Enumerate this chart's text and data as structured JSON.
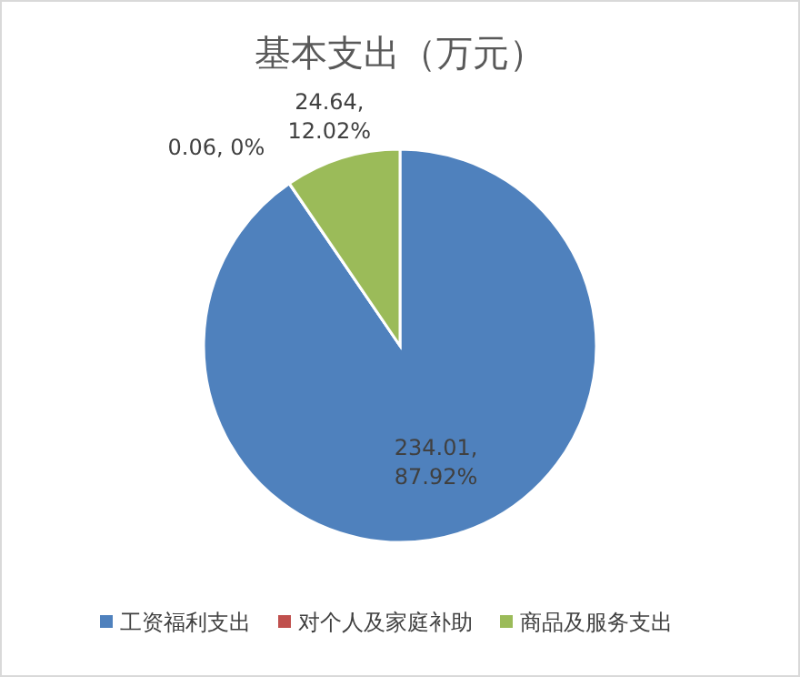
{
  "chart_data": {
    "type": "pie",
    "title": "基本支出（万元）",
    "categories": [
      "工资福利支出",
      "对个人及家庭补助",
      "商品及服务支出"
    ],
    "values": [
      234.01,
      0.06,
      24.64
    ],
    "colors": [
      "#4f81bd",
      "#c0504d",
      "#9bbb59"
    ],
    "value_labels": [
      "234.01, 87.92%",
      "0.06, 0%",
      "24.64, 12.02%"
    ],
    "legend": "bottom"
  }
}
